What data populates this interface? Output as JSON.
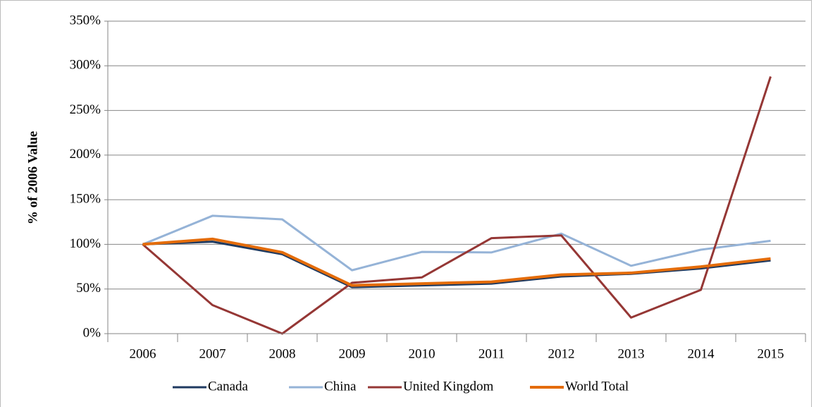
{
  "chart_data": {
    "type": "line",
    "ylabel": "% of 2006 Value",
    "categories": [
      "2006",
      "2007",
      "2008",
      "2009",
      "2010",
      "2011",
      "2012",
      "2013",
      "2014",
      "2015"
    ],
    "series": [
      {
        "name": "Canada",
        "color": "#1f3a60",
        "values": [
          100,
          103,
          89,
          52,
          54,
          56,
          64,
          67,
          73,
          82
        ]
      },
      {
        "name": "China",
        "color": "#95b3d7",
        "values": [
          100,
          132,
          128,
          71,
          91.5,
          91,
          112,
          76,
          94,
          104
        ]
      },
      {
        "name": "United Kingdom",
        "color": "#953735",
        "values": [
          100,
          32,
          0,
          57,
          63,
          107,
          110,
          18,
          49,
          288
        ]
      },
      {
        "name": "World Total",
        "color": "#e46c0a",
        "values": [
          100,
          106,
          91,
          54,
          56,
          58,
          66,
          68,
          75,
          84
        ]
      }
    ],
    "ylim": [
      0,
      350
    ],
    "yticks": [
      {
        "value": 0,
        "label": "0%"
      },
      {
        "value": 50,
        "label": "50%"
      },
      {
        "value": 100,
        "label": "100%"
      },
      {
        "value": 150,
        "label": "150%"
      },
      {
        "value": 200,
        "label": "200%"
      },
      {
        "value": 250,
        "label": "250%"
      },
      {
        "value": 300,
        "label": "300%"
      },
      {
        "value": 350,
        "label": "350%"
      }
    ],
    "grid": true,
    "legend": "bottom"
  }
}
